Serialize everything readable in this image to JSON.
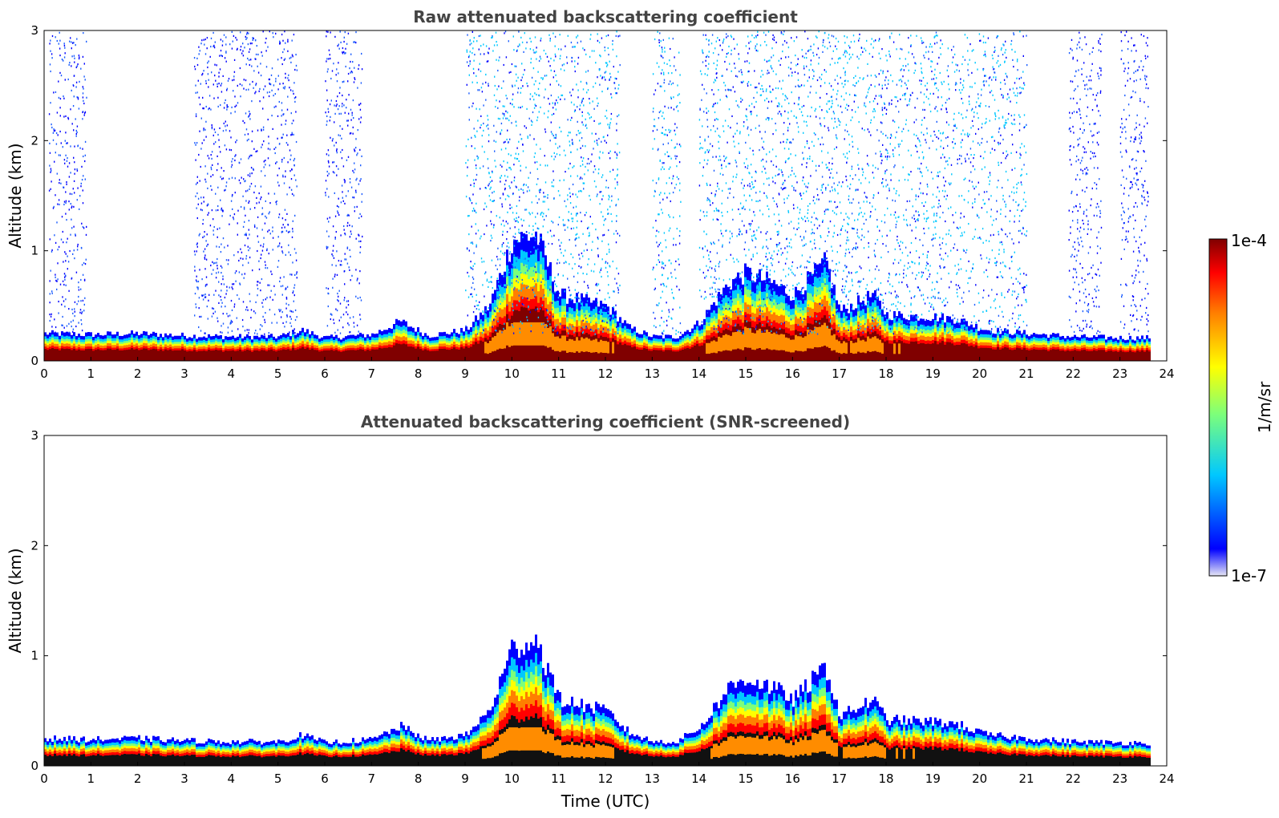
{
  "chart_data": [
    {
      "type": "heatmap",
      "title": "Raw attenuated backscattering coefficient",
      "xlabel": "",
      "ylabel": "Altitude (km)",
      "xlim": [
        0,
        24
      ],
      "ylim": [
        0,
        3
      ],
      "x_ticks": [
        0,
        1,
        2,
        3,
        4,
        5,
        6,
        7,
        8,
        9,
        10,
        11,
        12,
        13,
        14,
        15,
        16,
        17,
        18,
        19,
        20,
        21,
        22,
        23,
        24
      ],
      "y_ticks": [
        0,
        1,
        2,
        3
      ],
      "data_end_hour": 23.65,
      "boundary_layer_top_km": [
        [
          0,
          0.25
        ],
        [
          1,
          0.24
        ],
        [
          2,
          0.25
        ],
        [
          3,
          0.23
        ],
        [
          4,
          0.22
        ],
        [
          5,
          0.22
        ],
        [
          5.5,
          0.28
        ],
        [
          6,
          0.21
        ],
        [
          7,
          0.24
        ],
        [
          7.6,
          0.36
        ],
        [
          8.2,
          0.23
        ],
        [
          9,
          0.28
        ],
        [
          9.5,
          0.5
        ],
        [
          10,
          1.1
        ],
        [
          10.5,
          1.15
        ],
        [
          11,
          0.6
        ],
        [
          11.5,
          0.55
        ],
        [
          12,
          0.5
        ],
        [
          12.5,
          0.3
        ],
        [
          13,
          0.22
        ],
        [
          13.5,
          0.22
        ],
        [
          14,
          0.35
        ],
        [
          14.6,
          0.7
        ],
        [
          15,
          0.8
        ],
        [
          15.6,
          0.7
        ],
        [
          16,
          0.6
        ],
        [
          16.7,
          0.9
        ],
        [
          17,
          0.45
        ],
        [
          17.7,
          0.6
        ],
        [
          18,
          0.42
        ],
        [
          19,
          0.4
        ],
        [
          19.5,
          0.38
        ],
        [
          20,
          0.3
        ],
        [
          20.2,
          0.28
        ],
        [
          21,
          0.25
        ],
        [
          22,
          0.22
        ],
        [
          23,
          0.21
        ],
        [
          23.65,
          0.21
        ]
      ],
      "noise_region_hours": [
        [
          0.1,
          0.9
        ],
        [
          3.2,
          5.4
        ],
        [
          6.0,
          6.8
        ],
        [
          9.0,
          12.3
        ],
        [
          13.0,
          13.6
        ],
        [
          14.0,
          21.0
        ],
        [
          21.9,
          22.6
        ],
        [
          23.0,
          23.6
        ]
      ]
    },
    {
      "type": "heatmap",
      "title": "Attenuated backscattering coefficient (SNR-screened)",
      "xlabel": "Time (UTC)",
      "ylabel": "Altitude (km)",
      "xlim": [
        0,
        24
      ],
      "ylim": [
        0,
        3
      ],
      "x_ticks": [
        0,
        1,
        2,
        3,
        4,
        5,
        6,
        7,
        8,
        9,
        10,
        11,
        12,
        13,
        14,
        15,
        16,
        17,
        18,
        19,
        20,
        21,
        22,
        23,
        24
      ],
      "y_ticks": [
        0,
        1,
        2,
        3
      ],
      "data_end_hour": 23.65,
      "boundary_layer_top_km": [
        [
          0,
          0.25
        ],
        [
          1,
          0.24
        ],
        [
          2,
          0.25
        ],
        [
          3,
          0.23
        ],
        [
          4,
          0.22
        ],
        [
          5,
          0.22
        ],
        [
          5.5,
          0.28
        ],
        [
          6,
          0.21
        ],
        [
          7,
          0.24
        ],
        [
          7.6,
          0.36
        ],
        [
          8.2,
          0.23
        ],
        [
          9,
          0.28
        ],
        [
          9.5,
          0.5
        ],
        [
          10,
          1.08
        ],
        [
          10.5,
          1.15
        ],
        [
          11,
          0.6
        ],
        [
          11.5,
          0.55
        ],
        [
          12,
          0.5
        ],
        [
          12.5,
          0.3
        ],
        [
          13,
          0.22
        ],
        [
          13.5,
          0.22
        ],
        [
          14,
          0.35
        ],
        [
          14.6,
          0.7
        ],
        [
          15,
          0.8
        ],
        [
          15.6,
          0.7
        ],
        [
          16,
          0.6
        ],
        [
          16.7,
          0.9
        ],
        [
          17,
          0.45
        ],
        [
          17.7,
          0.6
        ],
        [
          18,
          0.42
        ],
        [
          19,
          0.4
        ],
        [
          19.5,
          0.38
        ],
        [
          20,
          0.3
        ],
        [
          20.2,
          0.28
        ],
        [
          21,
          0.25
        ],
        [
          22,
          0.22
        ],
        [
          23,
          0.21
        ],
        [
          23.65,
          0.21
        ]
      ]
    }
  ],
  "colorbar": {
    "label": "1/m/sr",
    "max_label": "1e-4",
    "min_label": "1e-7",
    "scale": "log",
    "colormap": "jet",
    "stops": [
      "#e6e6f5",
      "#0000ff",
      "#00c8ff",
      "#7dff7a",
      "#ffff00",
      "#ff7f00",
      "#ff0000",
      "#800000"
    ]
  }
}
